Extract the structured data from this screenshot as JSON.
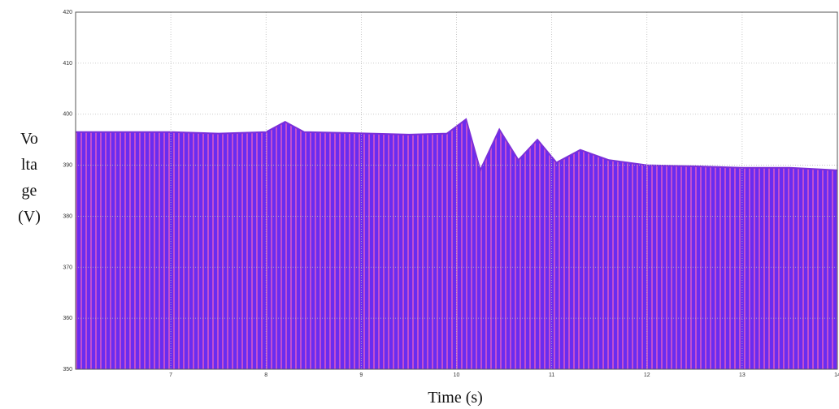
{
  "chart_data": {
    "type": "line",
    "x_label": "Time (s)",
    "y_label_lines": [
      "Vo",
      "lta",
      "ge",
      "(V)"
    ],
    "xlim": [
      6.0,
      14
    ],
    "xticks": [
      7,
      8,
      9,
      10,
      11,
      12,
      13,
      14
    ],
    "ylim": [
      350,
      420
    ],
    "yticks": [
      350,
      360,
      370,
      380,
      390,
      400,
      410,
      420
    ],
    "grid": true,
    "series": [
      {
        "color": "#7b2fd8",
        "x": [
          6.0,
          6.5,
          7.0,
          7.5,
          8.0,
          8.2,
          8.4,
          8.9,
          9.5,
          9.9,
          10.1,
          10.25,
          10.45,
          10.65,
          10.85,
          11.05,
          11.3,
          11.6,
          12.0,
          12.5,
          13.0,
          13.5,
          14.0
        ],
        "values": [
          396.5,
          396.5,
          396.5,
          396.2,
          396.5,
          398.5,
          396.5,
          396.3,
          396,
          396.2,
          399,
          389,
          397,
          391,
          395,
          390.5,
          393,
          391,
          390,
          389.8,
          389.5,
          389.5,
          389
        ]
      }
    ]
  }
}
